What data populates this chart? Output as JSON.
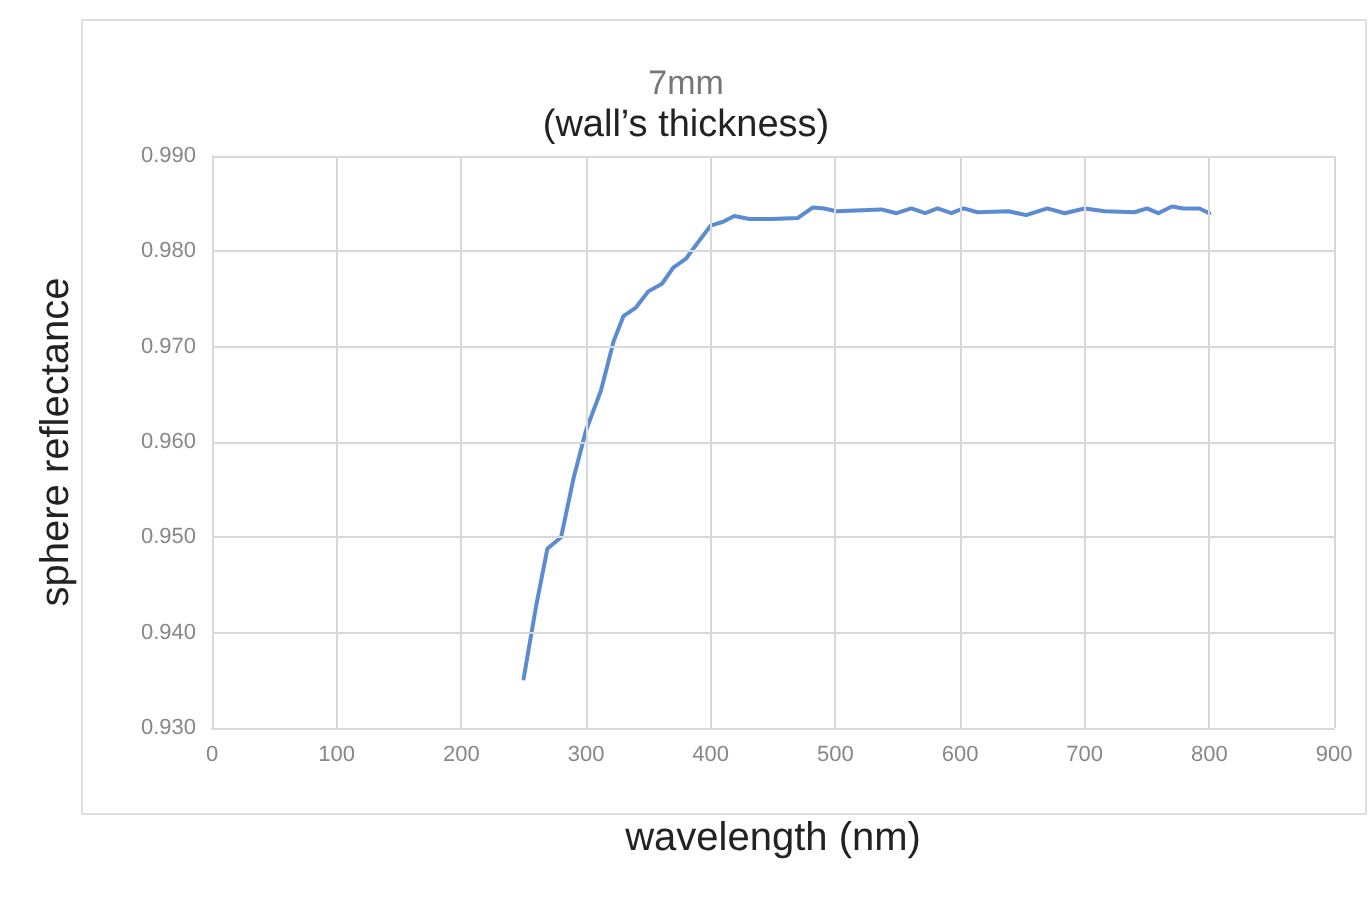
{
  "chart_data": {
    "type": "line",
    "title": "7mm",
    "subtitle": "(wall’s thickness)",
    "xlabel": "wavelength (nm)",
    "ylabel": "sphere reflectance",
    "xlim": [
      0,
      900
    ],
    "xticks": [
      0,
      100,
      200,
      300,
      400,
      500,
      600,
      700,
      800,
      900
    ],
    "ylim": [
      0.93,
      0.99
    ],
    "yticks": [
      {
        "value": 0.93,
        "label": "0.930"
      },
      {
        "value": 0.94,
        "label": "0.940"
      },
      {
        "value": 0.95,
        "label": "0.950"
      },
      {
        "value": 0.96,
        "label": "0.960"
      },
      {
        "value": 0.97,
        "label": "0.970"
      },
      {
        "value": 0.98,
        "label": "0.980"
      },
      {
        "value": 0.99,
        "label": "0.990"
      }
    ],
    "grid": true,
    "marker": "none",
    "line_style": "solid",
    "series": [
      {
        "color": "#5b8bd0",
        "x": [
          250,
          260,
          269,
          280,
          290,
          300,
          312,
          322,
          330,
          340,
          350,
          361,
          370,
          380,
          389,
          400,
          410,
          419,
          431,
          449,
          470,
          482,
          491,
          501,
          537,
          549,
          561,
          572,
          582,
          593,
          603,
          614,
          639,
          653,
          670,
          684,
          700,
          716,
          740,
          750,
          759,
          770,
          779,
          792,
          800
        ],
        "values": [
          0.9352,
          0.9428,
          0.9488,
          0.95,
          0.9562,
          0.9612,
          0.9654,
          0.9705,
          0.9732,
          0.9741,
          0.9758,
          0.9766,
          0.9783,
          0.9792,
          0.9808,
          0.9827,
          0.9831,
          0.9837,
          0.9834,
          0.9834,
          0.9835,
          0.9846,
          0.9845,
          0.9842,
          0.9844,
          0.984,
          0.9845,
          0.984,
          0.9845,
          0.984,
          0.9845,
          0.9841,
          0.9842,
          0.9838,
          0.9845,
          0.984,
          0.9845,
          0.9842,
          0.9841,
          0.9845,
          0.984,
          0.9847,
          0.9845,
          0.9845,
          0.984
        ]
      }
    ]
  }
}
